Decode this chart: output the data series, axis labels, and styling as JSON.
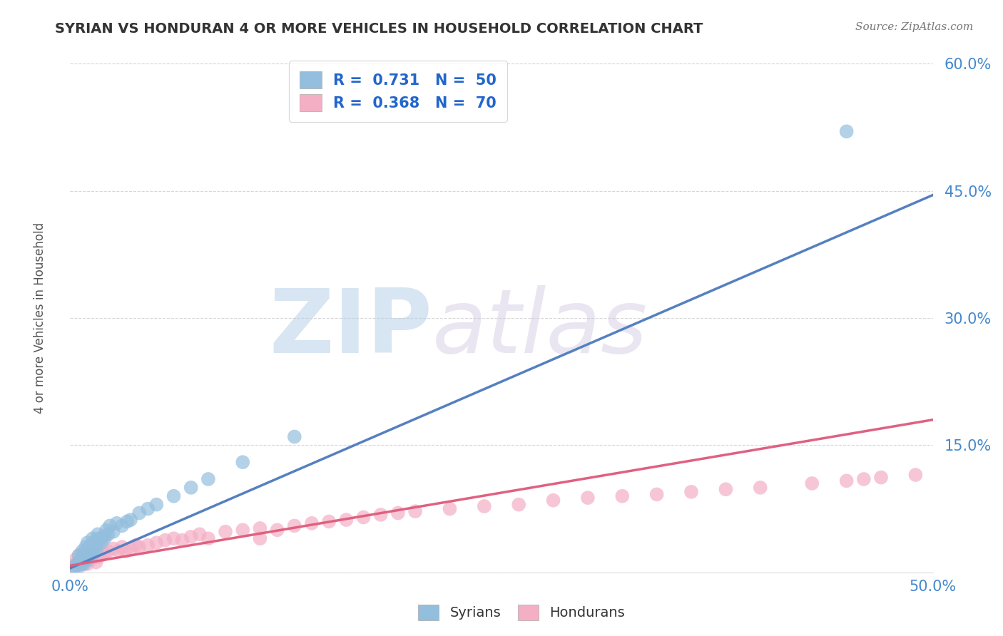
{
  "title": "SYRIAN VS HONDURAN 4 OR MORE VEHICLES IN HOUSEHOLD CORRELATION CHART",
  "source_text": "Source: ZipAtlas.com",
  "ylabel": "4 or more Vehicles in Household",
  "xlim": [
    0.0,
    0.5
  ],
  "ylim": [
    0.0,
    0.6
  ],
  "xticks": [
    0.0,
    0.05,
    0.1,
    0.15,
    0.2,
    0.25,
    0.3,
    0.35,
    0.4,
    0.45,
    0.5
  ],
  "xtick_labels": [
    "0.0%",
    "",
    "",
    "",
    "",
    "",
    "",
    "",
    "",
    "",
    "50.0%"
  ],
  "yticks": [
    0.0,
    0.15,
    0.3,
    0.45,
    0.6
  ],
  "ytick_labels": [
    "",
    "15.0%",
    "30.0%",
    "45.0%",
    "60.0%"
  ],
  "background_color": "#ffffff",
  "grid_color": "#cccccc",
  "watermark_zip": "ZIP",
  "watermark_atlas": "atlas",
  "syrian_color": "#93bedd",
  "honduran_color": "#f4afc5",
  "syrian_line_color": "#5580c0",
  "honduran_line_color": "#e06080",
  "syrian_R": 0.731,
  "syrian_N": 50,
  "honduran_R": 0.368,
  "honduran_N": 70,
  "legend_blue_color": "#2266cc",
  "legend_green_color": "#22aa22",
  "syrian_x": [
    0.002,
    0.003,
    0.004,
    0.005,
    0.005,
    0.006,
    0.006,
    0.007,
    0.007,
    0.007,
    0.008,
    0.008,
    0.008,
    0.009,
    0.009,
    0.01,
    0.01,
    0.01,
    0.011,
    0.011,
    0.012,
    0.012,
    0.013,
    0.013,
    0.014,
    0.015,
    0.015,
    0.016,
    0.016,
    0.017,
    0.018,
    0.019,
    0.02,
    0.021,
    0.022,
    0.023,
    0.025,
    0.027,
    0.03,
    0.033,
    0.035,
    0.04,
    0.045,
    0.05,
    0.06,
    0.07,
    0.08,
    0.1,
    0.13,
    0.45
  ],
  "syrian_y": [
    0.005,
    0.008,
    0.01,
    0.01,
    0.02,
    0.008,
    0.015,
    0.012,
    0.018,
    0.025,
    0.01,
    0.015,
    0.022,
    0.018,
    0.03,
    0.015,
    0.022,
    0.035,
    0.02,
    0.028,
    0.018,
    0.032,
    0.025,
    0.04,
    0.03,
    0.025,
    0.038,
    0.035,
    0.045,
    0.04,
    0.035,
    0.042,
    0.04,
    0.05,
    0.045,
    0.055,
    0.048,
    0.058,
    0.055,
    0.06,
    0.062,
    0.07,
    0.075,
    0.08,
    0.09,
    0.1,
    0.11,
    0.13,
    0.16,
    0.52
  ],
  "honduran_x": [
    0.001,
    0.002,
    0.003,
    0.003,
    0.004,
    0.005,
    0.005,
    0.006,
    0.007,
    0.007,
    0.008,
    0.008,
    0.009,
    0.01,
    0.01,
    0.011,
    0.012,
    0.012,
    0.013,
    0.014,
    0.015,
    0.015,
    0.016,
    0.017,
    0.018,
    0.02,
    0.022,
    0.025,
    0.028,
    0.03,
    0.032,
    0.035,
    0.038,
    0.04,
    0.045,
    0.05,
    0.055,
    0.06,
    0.065,
    0.07,
    0.075,
    0.08,
    0.09,
    0.1,
    0.11,
    0.12,
    0.13,
    0.14,
    0.15,
    0.16,
    0.17,
    0.18,
    0.19,
    0.2,
    0.22,
    0.24,
    0.26,
    0.28,
    0.3,
    0.32,
    0.34,
    0.36,
    0.38,
    0.4,
    0.43,
    0.45,
    0.46,
    0.47,
    0.49,
    0.11
  ],
  "honduran_y": [
    0.005,
    0.008,
    0.01,
    0.015,
    0.008,
    0.012,
    0.02,
    0.01,
    0.015,
    0.022,
    0.012,
    0.018,
    0.015,
    0.01,
    0.022,
    0.018,
    0.015,
    0.025,
    0.02,
    0.018,
    0.012,
    0.022,
    0.018,
    0.025,
    0.02,
    0.022,
    0.025,
    0.028,
    0.025,
    0.03,
    0.025,
    0.028,
    0.032,
    0.03,
    0.032,
    0.035,
    0.038,
    0.04,
    0.038,
    0.042,
    0.045,
    0.04,
    0.048,
    0.05,
    0.052,
    0.05,
    0.055,
    0.058,
    0.06,
    0.062,
    0.065,
    0.068,
    0.07,
    0.072,
    0.075,
    0.078,
    0.08,
    0.085,
    0.088,
    0.09,
    0.092,
    0.095,
    0.098,
    0.1,
    0.105,
    0.108,
    0.11,
    0.112,
    0.115,
    0.04
  ],
  "syrian_line_x": [
    0.0,
    0.5
  ],
  "syrian_line_y": [
    0.005,
    0.445
  ],
  "honduran_line_x": [
    0.0,
    0.5
  ],
  "honduran_line_y": [
    0.008,
    0.18
  ]
}
